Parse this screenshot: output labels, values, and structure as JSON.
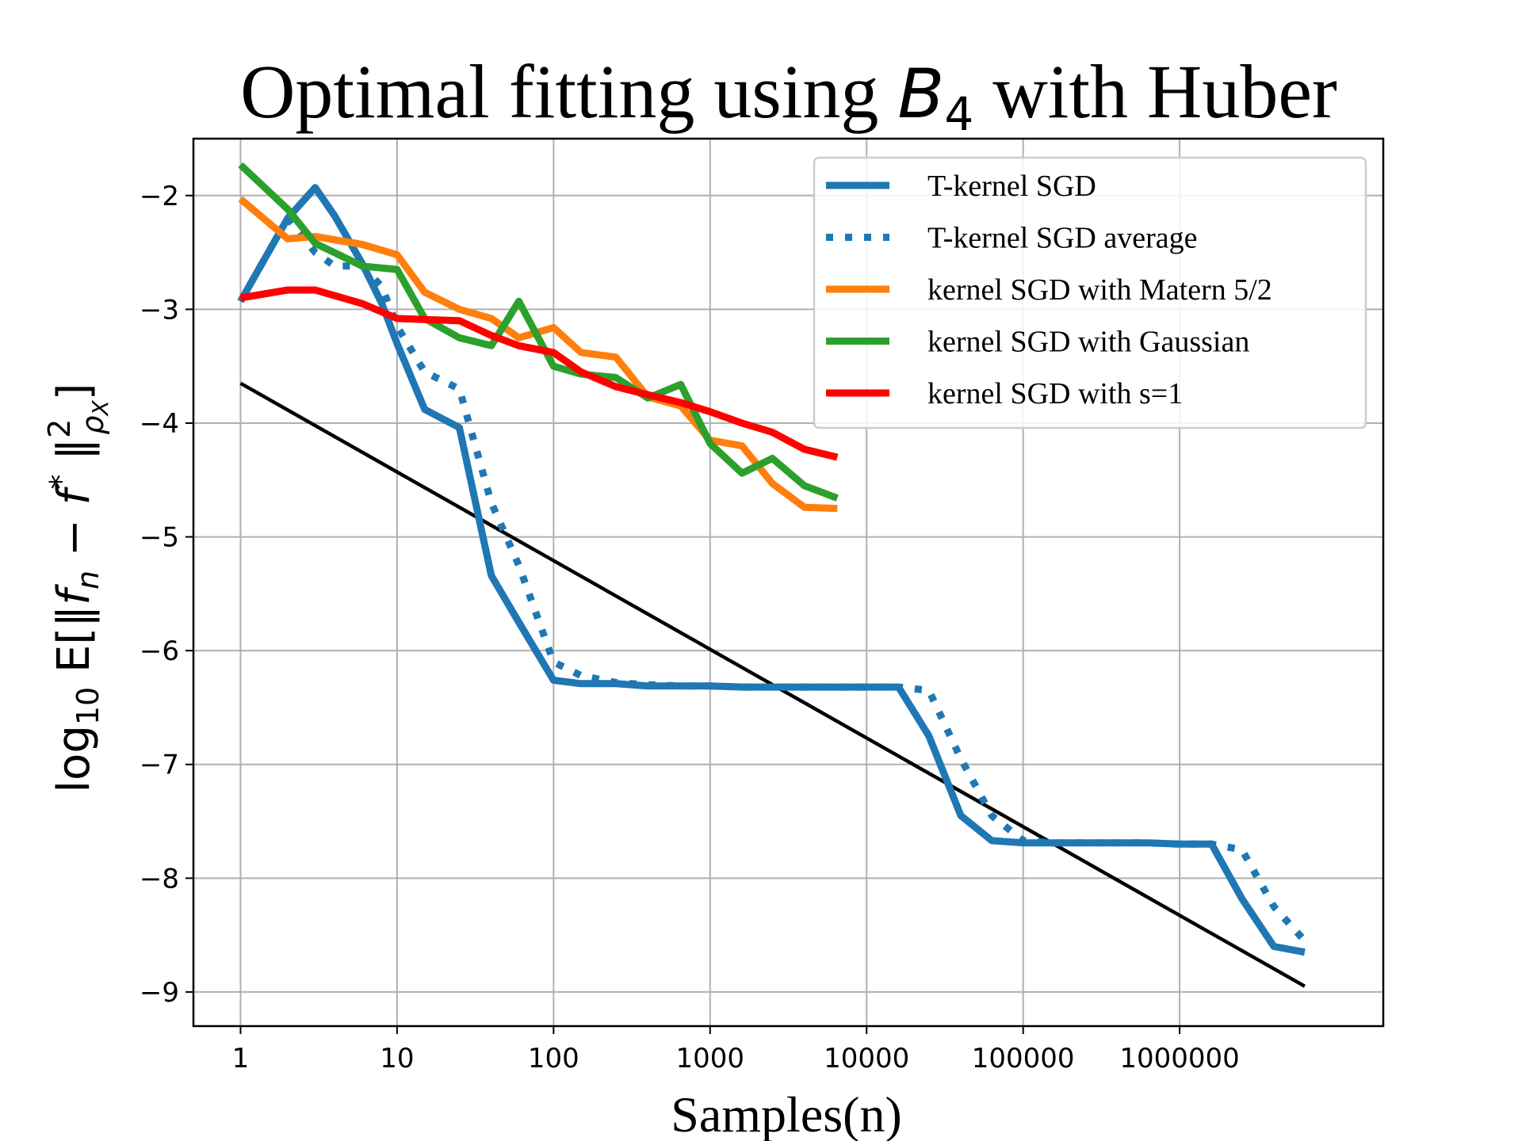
{
  "chart_data": {
    "type": "line",
    "title": "Optimal fitting using B4 with Huber",
    "xlabel": "Samples(n)",
    "ylabel": "log10 E[‖fn − f*‖²ρX]",
    "xscale": "log",
    "xlim": [
      0.5,
      20000000
    ],
    "ylim": [
      -9.3,
      -1.5
    ],
    "x_ticks": [
      1,
      10,
      100,
      1000,
      10000,
      100000,
      1000000
    ],
    "x_tick_labels": [
      "1",
      "10",
      "100",
      "1000",
      "10000",
      "100000",
      "1000000"
    ],
    "y_ticks": [
      -2,
      -3,
      -4,
      -5,
      -6,
      -7,
      -8,
      -9
    ],
    "y_tick_labels": [
      "−2",
      "−3",
      "−4",
      "−5",
      "−6",
      "−7",
      "−8",
      "−9"
    ],
    "grid": true,
    "legend_position": "top-right",
    "series": [
      {
        "name": "T-kernel SGD",
        "color": "#1f77b4",
        "style": "solid",
        "x": [
          1,
          2,
          3,
          4,
          6,
          8,
          10,
          15,
          25,
          40,
          60,
          100,
          150,
          250,
          400,
          650,
          1000,
          1600,
          2500,
          4000,
          6500,
          10000,
          16000,
          25000,
          40000,
          63000,
          100000,
          160000,
          250000,
          400000,
          630000,
          1000000,
          1600000,
          2500000,
          4000000,
          6300000
        ],
        "y": [
          -2.93,
          -2.2,
          -1.93,
          -2.18,
          -2.6,
          -2.95,
          -3.3,
          -3.88,
          -4.04,
          -5.34,
          -5.75,
          -6.26,
          -6.29,
          -6.29,
          -6.31,
          -6.31,
          -6.31,
          -6.32,
          -6.32,
          -6.32,
          -6.32,
          -6.32,
          -6.32,
          -6.75,
          -7.45,
          -7.67,
          -7.69,
          -7.69,
          -7.69,
          -7.69,
          -7.69,
          -7.7,
          -7.7,
          -8.18,
          -8.6,
          -8.65
        ]
      },
      {
        "name": "T-kernel SGD average",
        "color": "#1f77b4",
        "style": "dotted",
        "x": [
          1,
          2,
          3,
          4,
          6,
          8,
          10,
          15,
          25,
          40,
          60,
          100,
          150,
          250,
          400,
          650,
          1000,
          1600,
          2500,
          4000,
          6500,
          10000,
          16000,
          25000,
          40000,
          63000,
          100000,
          160000,
          250000,
          400000,
          630000,
          1000000,
          1600000,
          2500000,
          4000000,
          6300000
        ],
        "y": [
          -2.93,
          -2.2,
          -2.5,
          -2.62,
          -2.62,
          -2.8,
          -3.15,
          -3.55,
          -3.7,
          -4.7,
          -5.25,
          -6.1,
          -6.22,
          -6.28,
          -6.3,
          -6.31,
          -6.31,
          -6.32,
          -6.32,
          -6.32,
          -6.32,
          -6.32,
          -6.32,
          -6.35,
          -6.95,
          -7.45,
          -7.67,
          -7.69,
          -7.69,
          -7.69,
          -7.69,
          -7.7,
          -7.7,
          -7.75,
          -8.25,
          -8.55
        ]
      },
      {
        "name": "kernel SGD with Matern 5/2",
        "color": "#ff7f0e",
        "style": "solid",
        "x": [
          1,
          2,
          3,
          6,
          10,
          15,
          25,
          40,
          60,
          100,
          150,
          250,
          400,
          650,
          1000,
          1600,
          2500,
          4000,
          6500
        ],
        "y": [
          -2.03,
          -2.38,
          -2.36,
          -2.43,
          -2.52,
          -2.85,
          -3.0,
          -3.08,
          -3.25,
          -3.16,
          -3.38,
          -3.42,
          -3.77,
          -3.85,
          -4.15,
          -4.2,
          -4.53,
          -4.74,
          -4.75
        ]
      },
      {
        "name": "kernel SGD with Gaussian",
        "color": "#2ca02c",
        "style": "solid",
        "x": [
          1,
          2,
          3,
          6,
          10,
          15,
          25,
          40,
          60,
          100,
          150,
          250,
          400,
          650,
          1000,
          1600,
          2500,
          4000,
          6500
        ],
        "y": [
          -1.73,
          -2.12,
          -2.42,
          -2.62,
          -2.65,
          -3.08,
          -3.25,
          -3.32,
          -2.93,
          -3.5,
          -3.57,
          -3.6,
          -3.78,
          -3.66,
          -4.18,
          -4.44,
          -4.31,
          -4.55,
          -4.66
        ]
      },
      {
        "name": "kernel SGD with s=1",
        "color": "#ff0000",
        "style": "solid",
        "x": [
          1,
          2,
          3,
          6,
          10,
          15,
          25,
          40,
          60,
          100,
          150,
          250,
          400,
          650,
          1000,
          1600,
          2500,
          4000,
          6500
        ],
        "y": [
          -2.9,
          -2.83,
          -2.83,
          -2.95,
          -3.08,
          -3.09,
          -3.1,
          -3.23,
          -3.32,
          -3.38,
          -3.55,
          -3.68,
          -3.75,
          -3.82,
          -3.9,
          -4.0,
          -4.08,
          -4.23,
          -4.3
        ]
      },
      {
        "name": "",
        "color": "#000000",
        "style": "solid",
        "x": [
          1,
          6300000
        ],
        "y": [
          -3.65,
          -8.95
        ]
      }
    ]
  }
}
